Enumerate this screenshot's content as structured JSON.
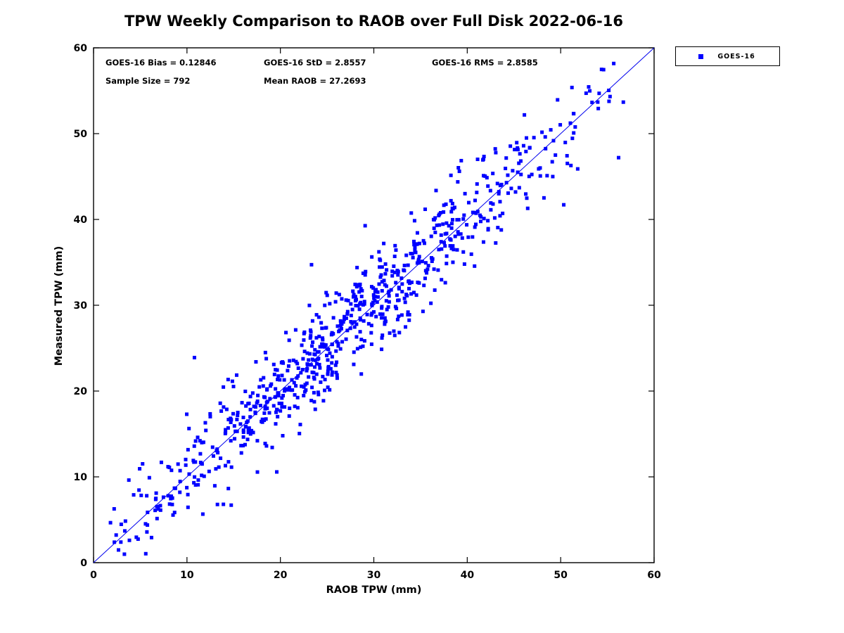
{
  "title": "TPW Weekly Comparison to RAOB over Full Disk 2022-06-16",
  "stats": {
    "bias": "GOES-16 Bias = 0.12846",
    "std": "GOES-16 StD = 2.8557",
    "rms": "GOES-16 RMS = 2.8585",
    "sample_size": "Sample Size = 792",
    "mean_raob": "Mean RAOB = 27.2693"
  },
  "legend": {
    "items": [
      {
        "label": "GOES-16",
        "marker": "square",
        "color": "#0000ff"
      }
    ]
  },
  "chart_data": {
    "type": "scatter",
    "title": "TPW Weekly Comparison to RAOB over Full Disk 2022-06-16",
    "xlabel": "RAOB TPW (mm)",
    "ylabel": "Measured TPW (mm)",
    "xlim": [
      0,
      60
    ],
    "ylim": [
      0,
      60
    ],
    "xticks": [
      0,
      10,
      20,
      30,
      40,
      50,
      60
    ],
    "yticks": [
      0,
      10,
      20,
      30,
      40,
      50,
      60
    ],
    "grid": false,
    "legend_position": "top-right-outside",
    "reference_line": {
      "type": "identity",
      "from": [
        0,
        0
      ],
      "to": [
        60,
        60
      ],
      "color": "#0000ee",
      "width": 1
    },
    "series": [
      {
        "name": "GOES-16",
        "marker": "square",
        "marker_size": 5,
        "color": "#0000ff",
        "n_points": 792,
        "stats": {
          "bias": 0.12846,
          "std": 2.8557,
          "rms": 2.8585,
          "sample_size": 792,
          "mean_raob": 27.2693
        },
        "x_distribution": {
          "type": "truncated-normal",
          "mean": 27.2693,
          "sd": 12.6,
          "min": 1.8,
          "max": 56.8
        },
        "noise": {
          "type": "normal",
          "mean": 0.12846,
          "sd": 2.8557
        },
        "seed": 20220616,
        "outliers": [
          [
            10.8,
            23.9
          ],
          [
            13.9,
            6.8
          ],
          [
            56.2,
            47.2
          ]
        ]
      }
    ]
  }
}
